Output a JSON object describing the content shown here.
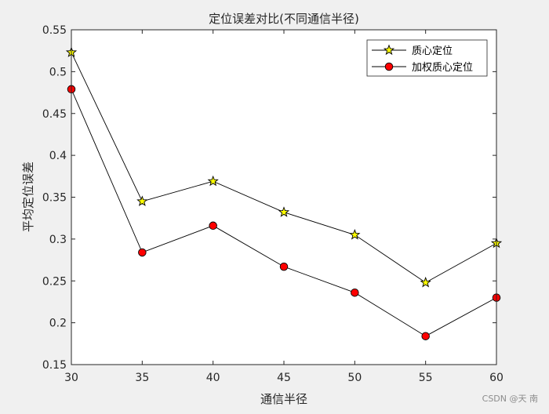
{
  "chart_data": {
    "type": "line",
    "title": "定位误差对比(不同通信半径)",
    "xlabel": "通信半径",
    "ylabel": "平均定位误差",
    "x": [
      30,
      35,
      40,
      45,
      50,
      55,
      60
    ],
    "xlim": [
      30,
      60
    ],
    "ylim": [
      0.15,
      0.55
    ],
    "xticks": [
      "30",
      "35",
      "40",
      "45",
      "50",
      "55",
      "60"
    ],
    "yticks": [
      "0.15",
      "0.2",
      "0.25",
      "0.3",
      "0.35",
      "0.4",
      "0.45",
      "0.5",
      "0.55"
    ],
    "grid": false,
    "legend_position": "top-right",
    "series": [
      {
        "name": "质心定位",
        "marker": "star",
        "marker_color": "#ffff00",
        "line_color": "#000000",
        "values": [
          0.523,
          0.345,
          0.369,
          0.332,
          0.305,
          0.248,
          0.295
        ]
      },
      {
        "name": "加权质心定位",
        "marker": "circle",
        "marker_color": "#ff0000",
        "line_color": "#000000",
        "values": [
          0.479,
          0.284,
          0.316,
          0.267,
          0.236,
          0.184,
          0.23
        ]
      }
    ]
  },
  "watermark": "CSDN @天 南",
  "colors": {
    "figure_background": "#f0f0f0",
    "axes_background": "#ffffff"
  }
}
